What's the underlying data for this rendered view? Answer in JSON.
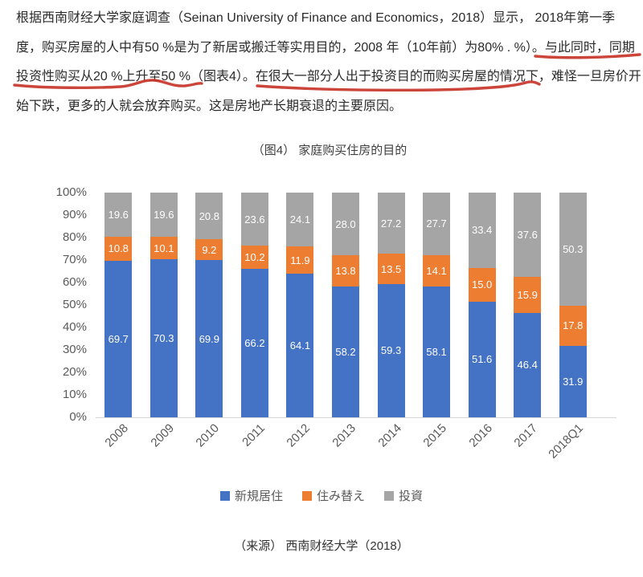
{
  "document": {
    "paragraph_lines": [
      "根据西南财经大学家庭调查（Seinan University of Finance and Economics，2018）显示， 2018年第一季",
      "度，购买房屋的人中有50 %是为了新居或搬迁等实用目的，2008 年（10年前）为80% . %）。与此同时，同期",
      "投资性购买从20 %上升至50 %（图表4）。在很大一部分人出于投资目的而购买房屋的情况下，难怪一旦房价开",
      "始下跌，更多的人就会放弃购买。这是房地产长期衰退的主要原因。"
    ],
    "figure_title": "（图4） 家庭购买住房的目的",
    "source_note": "（来源） 西南财经大学（2018）"
  },
  "annotations": {
    "style": "hand-drawn red underlines",
    "underline_color": "#c8352a",
    "underlined_text": [
      "与此同时，同期",
      "投资性购买从20 %上升至50 %",
      "在很大一部分人出于投资目的而购买房屋的情况下，"
    ]
  },
  "chart_data": {
    "type": "bar",
    "subtype": "stacked-100-percent",
    "title": "（图4） 家庭购买住房的目的",
    "categories": [
      "2008",
      "2009",
      "2010",
      "2011",
      "2012",
      "2013",
      "2014",
      "2015",
      "2016",
      "2017",
      "2018Q1"
    ],
    "series": [
      {
        "name": "新規居住",
        "color": "#4472C4",
        "values": [
          69.7,
          70.3,
          69.9,
          66.2,
          64.1,
          58.2,
          59.3,
          58.1,
          51.6,
          46.4,
          31.9
        ],
        "labels": [
          "69.7",
          "70.3",
          "69.9",
          "66.2",
          "64.1",
          "58.2",
          "59.3",
          "58.1",
          "51.6",
          "46.4",
          "31.9"
        ]
      },
      {
        "name": "住み替え",
        "color": "#ED7D31",
        "values": [
          10.8,
          10.1,
          9.2,
          10.2,
          11.9,
          13.8,
          13.5,
          14.1,
          15.0,
          15.9,
          17.8
        ],
        "labels": [
          "10.8",
          "10.1",
          "9.2",
          "10.2",
          "11.9",
          "13.8",
          "13.5",
          "14.1",
          "15.0",
          "15.9",
          "17.8"
        ]
      },
      {
        "name": "投資",
        "color": "#A5A5A5",
        "pattern": "dots",
        "values": [
          19.6,
          19.6,
          20.8,
          23.6,
          24.1,
          28.0,
          27.2,
          27.7,
          33.4,
          37.6,
          50.3
        ],
        "labels": [
          "19.6",
          "19.6",
          "20.8",
          "23.6",
          "24.1",
          "28.0",
          "27.2",
          "27.7",
          "33.4",
          "37.6",
          "50.3"
        ]
      }
    ],
    "y_axis": {
      "min": 0,
      "max": 100,
      "ticks": [
        "100%",
        "90%",
        "80%",
        "70%",
        "60%",
        "50%",
        "40%",
        "30%",
        "20%",
        "10%",
        "0%"
      ]
    },
    "grid": false,
    "legend_position": "bottom",
    "data_label_color": "#ffffff",
    "axis_label_color": "#595959",
    "source": "（来源） 西南财经大学（2018）"
  }
}
